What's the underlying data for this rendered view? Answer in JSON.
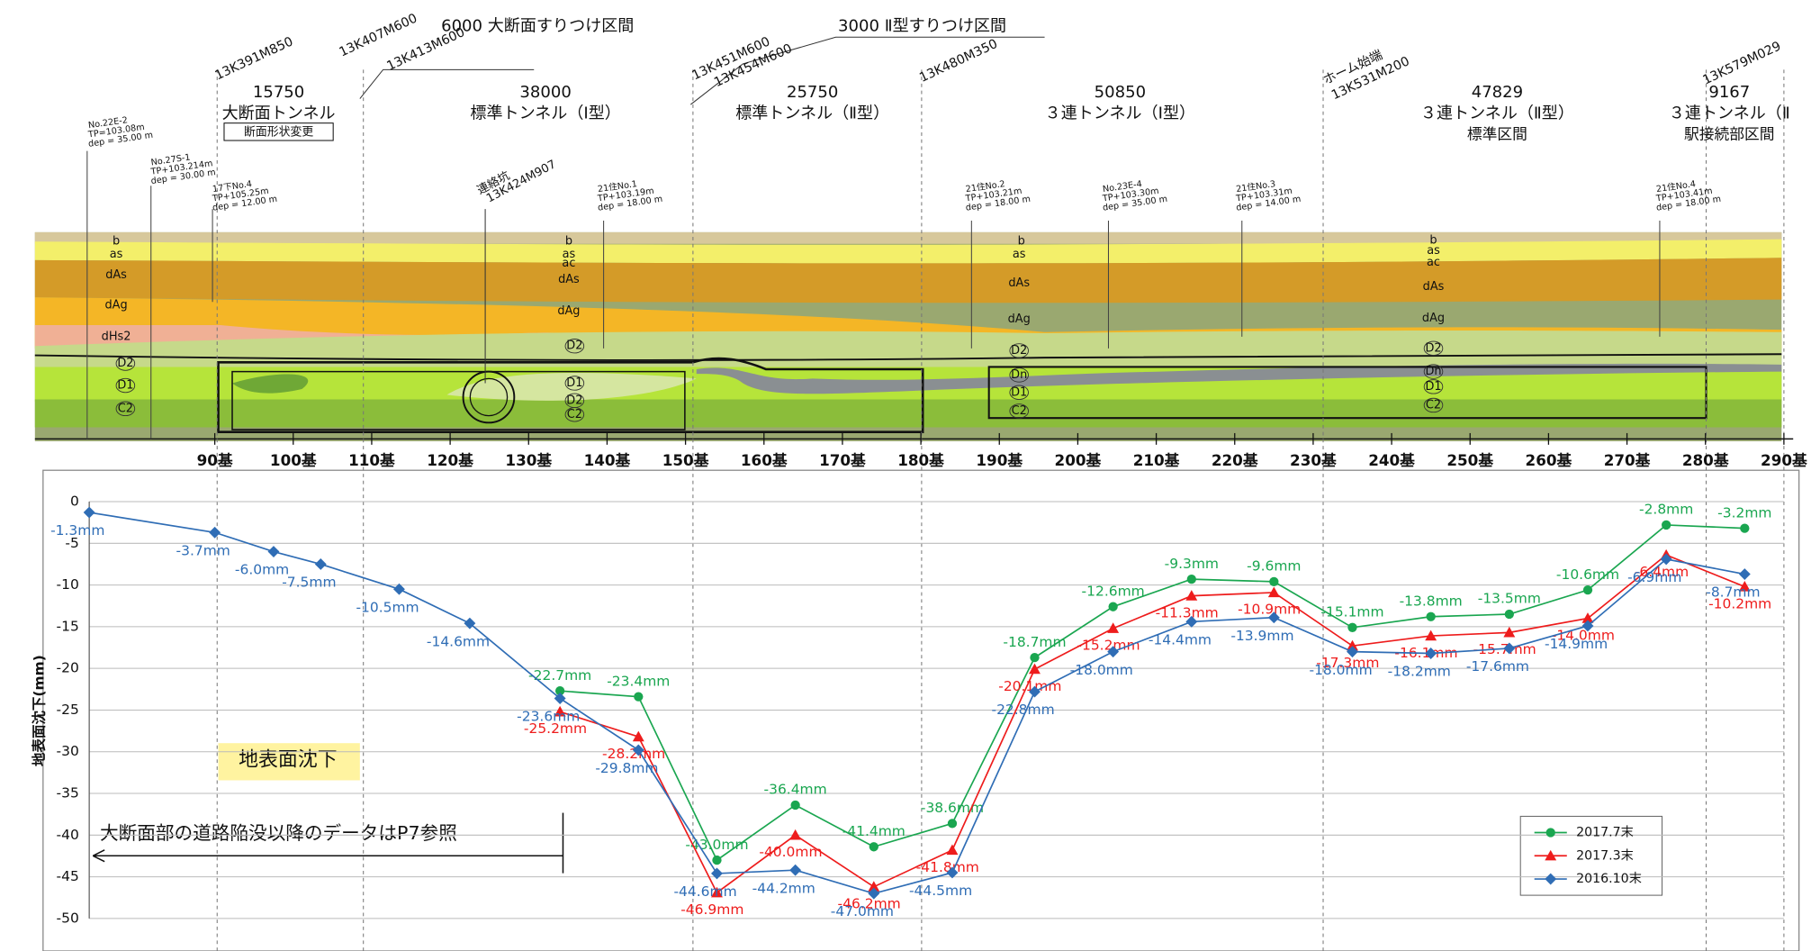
{
  "chart_data": {
    "type": "line",
    "ylabel": "地表面沈下(mm)",
    "annotations": [
      "地表面沈下",
      "大断面部の道路陥没以降のデータはP7参照"
    ],
    "xlim": [
      74,
      290
    ],
    "xticks": [
      {
        "value": 90,
        "label": "90基"
      },
      {
        "value": 100,
        "label": "100基"
      },
      {
        "value": 110,
        "label": "110基"
      },
      {
        "value": 120,
        "label": "120基"
      },
      {
        "value": 130,
        "label": "130基"
      },
      {
        "value": 140,
        "label": "140基"
      },
      {
        "value": 150,
        "label": "150基"
      },
      {
        "value": 160,
        "label": "160基"
      },
      {
        "value": 170,
        "label": "170基"
      },
      {
        "value": 180,
        "label": "180基"
      },
      {
        "value": 190,
        "label": "190基"
      },
      {
        "value": 200,
        "label": "200基"
      },
      {
        "value": 210,
        "label": "210基"
      },
      {
        "value": 220,
        "label": "220基"
      },
      {
        "value": 230,
        "label": "230基"
      },
      {
        "value": 240,
        "label": "240基"
      },
      {
        "value": 250,
        "label": "250基"
      },
      {
        "value": 260,
        "label": "260基"
      },
      {
        "value": 270,
        "label": "270基"
      },
      {
        "value": 280,
        "label": "280基"
      },
      {
        "value": 290,
        "label": "290基"
      }
    ],
    "ylim": [
      -50,
      0
    ],
    "yticks": [
      -50,
      -45,
      -40,
      -35,
      -30,
      -25,
      -20,
      -15,
      -10,
      -5,
      0
    ],
    "grid": true,
    "legend": "lower right",
    "x": [
      74,
      90,
      97.5,
      103.5,
      113.5,
      122.5,
      134,
      144,
      154,
      164,
      174,
      184,
      194.5,
      204.5,
      214.5,
      225,
      235,
      245,
      255,
      265,
      275,
      285
    ],
    "series": [
      {
        "name": "2017.7末",
        "color": "#1aa650",
        "marker": "circle",
        "values": [
          null,
          null,
          null,
          null,
          null,
          null,
          -22.7,
          -23.4,
          -43.0,
          -36.4,
          -41.4,
          -38.6,
          -18.7,
          -12.6,
          -9.3,
          -9.6,
          -15.1,
          -13.8,
          -13.5,
          -10.6,
          -2.8,
          -3.2
        ],
        "value_labels": [
          null,
          null,
          null,
          null,
          null,
          null,
          "-22.7mm",
          "-23.4mm",
          "-43.0mm",
          "-36.4mm",
          "-41.4mm",
          "-38.6mm",
          "-18.7mm",
          "-12.6mm",
          "-9.3mm",
          "-9.6mm",
          "-15.1mm",
          "-13.8mm",
          "-13.5mm",
          "-10.6mm",
          "-2.8mm",
          "-3.2mm"
        ]
      },
      {
        "name": "2017.3末",
        "color": "#ee1c1c",
        "marker": "triangle",
        "values": [
          null,
          null,
          null,
          null,
          null,
          null,
          -25.2,
          -28.2,
          -46.9,
          -40.0,
          -46.2,
          -41.8,
          -20.1,
          -15.2,
          -11.3,
          -10.9,
          -17.3,
          -16.1,
          -15.7,
          -14.0,
          -6.4,
          -10.2
        ],
        "value_labels": [
          null,
          null,
          null,
          null,
          null,
          null,
          "-25.2mm",
          "-28.2mm",
          "-46.9mm",
          "-40.0mm",
          "-46.2mm",
          "-41.8mm",
          "-20.1mm",
          "-15.2mm",
          "-11.3mm",
          "-10.9mm",
          "-17.3mm",
          "-16.1mm",
          "-15.7mm",
          "-14.0mm",
          "-6.4mm",
          "-10.2mm"
        ]
      },
      {
        "name": "2016.10末",
        "color": "#2f6db5",
        "marker": "diamond",
        "values": [
          -1.3,
          -3.7,
          -6.0,
          -7.5,
          -10.5,
          -14.6,
          -23.6,
          -29.8,
          -44.6,
          -44.2,
          -47.0,
          -44.5,
          -22.8,
          -18.0,
          -14.4,
          -13.9,
          -18.0,
          -18.2,
          -17.6,
          -14.9,
          -6.9,
          -8.7
        ],
        "value_labels": [
          "-1.3mm",
          "-3.7mm",
          "-6.0mm",
          "-7.5mm",
          "-10.5mm",
          "-14.6mm",
          "-23.6mm",
          "-29.8mm",
          "-44.6mm",
          "-44.2mm",
          "-47.0mm",
          "-44.5mm",
          "-22.8mm",
          "-18.0mm",
          "-14.4mm",
          "-13.9mm",
          "-18.0mm",
          "-18.2mm",
          "-17.6mm",
          "-14.9mm",
          "-6.9mm",
          "-8.7mm"
        ]
      }
    ]
  },
  "profile": {
    "transitions": [
      "6000 大断面すりつけ区間",
      "3000 Ⅱ型すりつけ区間"
    ],
    "stations": [
      "13K391M850",
      "13K407M600",
      "13K413M600",
      "13K451M600",
      "13K454M600",
      "13K480M350",
      "ホーム始端",
      "13K531M200",
      "13K579M029"
    ],
    "sections": [
      {
        "length": 15750,
        "name": "大断面トンネル",
        "note": "断面形状変更"
      },
      {
        "length": 38000,
        "name": "標準トンネル（Ⅰ型）"
      },
      {
        "length": 25750,
        "name": "標準トンネル（Ⅱ型）"
      },
      {
        "length": 50850,
        "name": "３連トンネル（Ⅰ型）"
      },
      {
        "length": 47829,
        "name": "３連トンネル（Ⅱ型）",
        "note": "標準区間"
      },
      {
        "length": 9167,
        "name": "３連トンネル（Ⅱ",
        "note": "駅接続部区間"
      }
    ],
    "borings": [
      {
        "name": "No.22E-2",
        "tp": "TP=103.08m",
        "dep": "dep = 35.00 m"
      },
      {
        "name": "No.27S-1",
        "tp": "TP+103.214m",
        "dep": "dep = 30.00 m"
      },
      {
        "name": "17下No.4",
        "tp": "TP+105.25m",
        "dep": "dep = 12.00 m"
      },
      {
        "name": "21住No.1",
        "tp": "TP+103.19m",
        "dep": "dep = 18.00 m"
      },
      {
        "name": "21住No.2",
        "tp": "TP+103.21m",
        "dep": "dep = 18.00 m"
      },
      {
        "name": "No.23E-4",
        "tp": "TP+103.30m",
        "dep": "dep = 35.00 m"
      },
      {
        "name": "21住No.3",
        "tp": "TP+103.31m",
        "dep": "dep = 14.00 m"
      },
      {
        "name": "21住No.4",
        "tp": "TP+103.41m",
        "dep": "dep = 18.00 m"
      }
    ],
    "passage": [
      "連絡坑",
      "13K424M907"
    ],
    "layers": [
      "b",
      "as",
      "ac",
      "dAs",
      "dAg",
      "dHs2",
      "D2",
      "D1",
      "Dn",
      "C2"
    ]
  }
}
